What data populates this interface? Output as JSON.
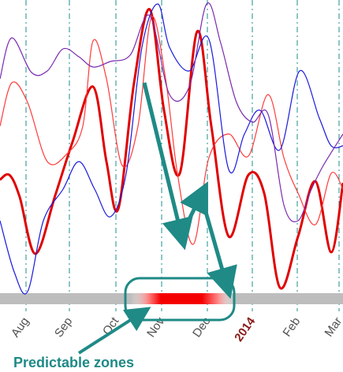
{
  "chart_data": {
    "type": "line",
    "title": "",
    "xlabel": "",
    "ylabel": "",
    "x_ticks": [
      "Aug",
      "Sep",
      "Oct",
      "Nov",
      "Dec",
      "2014",
      "Feb",
      "Mar"
    ],
    "year_tick": "2014",
    "grid": "vertical dashed lines at month boundaries",
    "series": [
      {
        "color": "#e00000",
        "style": "thick",
        "points": [
          [
            0,
            228
          ],
          [
            12,
            222
          ],
          [
            25,
            250
          ],
          [
            45,
            322
          ],
          [
            70,
            248
          ],
          [
            92,
            180
          ],
          [
            118,
            110
          ],
          [
            135,
            205
          ],
          [
            150,
            265
          ],
          [
            170,
            105
          ],
          [
            190,
            12
          ],
          [
            208,
            140
          ],
          [
            228,
            220
          ],
          [
            250,
            40
          ],
          [
            268,
            160
          ],
          [
            290,
            300
          ],
          [
            315,
            222
          ],
          [
            335,
            245
          ],
          [
            355,
            365
          ],
          [
            378,
            300
          ],
          [
            400,
            230
          ],
          [
            420,
            320
          ],
          [
            435,
            232
          ]
        ]
      },
      {
        "color": "#ff3a3a",
        "style": "thin",
        "points": [
          [
            0,
            160
          ],
          [
            15,
            105
          ],
          [
            35,
            130
          ],
          [
            60,
            205
          ],
          [
            85,
            195
          ],
          [
            105,
            160
          ],
          [
            118,
            52
          ],
          [
            135,
            100
          ],
          [
            155,
            210
          ],
          [
            175,
            160
          ],
          [
            192,
            22
          ],
          [
            210,
            100
          ],
          [
            225,
            220
          ],
          [
            245,
            310
          ],
          [
            265,
            200
          ],
          [
            290,
            170
          ],
          [
            315,
            198
          ],
          [
            340,
            120
          ],
          [
            360,
            200
          ],
          [
            378,
            245
          ],
          [
            400,
            285
          ],
          [
            420,
            220
          ],
          [
            435,
            240
          ]
        ]
      },
      {
        "color": "#1a1adc",
        "style": "thin",
        "points": [
          [
            0,
            280
          ],
          [
            18,
            345
          ],
          [
            35,
            370
          ],
          [
            55,
            280
          ],
          [
            80,
            240
          ],
          [
            100,
            205
          ],
          [
            120,
            240
          ],
          [
            140,
            275
          ],
          [
            160,
            220
          ],
          [
            180,
            60
          ],
          [
            200,
            5
          ],
          [
            215,
            60
          ],
          [
            240,
            90
          ],
          [
            265,
            50
          ],
          [
            290,
            215
          ],
          [
            310,
            170
          ],
          [
            330,
            140
          ],
          [
            355,
            190
          ],
          [
            380,
            90
          ],
          [
            405,
            150
          ],
          [
            420,
            185
          ],
          [
            435,
            185
          ]
        ]
      },
      {
        "color": "#7a2ab0",
        "style": "thin",
        "points": [
          [
            0,
            100
          ],
          [
            15,
            48
          ],
          [
            40,
            92
          ],
          [
            60,
            90
          ],
          [
            80,
            62
          ],
          [
            100,
            72
          ],
          [
            118,
            85
          ],
          [
            140,
            78
          ],
          [
            165,
            70
          ],
          [
            190,
            20
          ],
          [
            215,
            120
          ],
          [
            240,
            110
          ],
          [
            262,
            5
          ],
          [
            280,
            55
          ],
          [
            300,
            130
          ],
          [
            320,
            155
          ],
          [
            340,
            145
          ],
          [
            360,
            260
          ],
          [
            378,
            280
          ],
          [
            395,
            240
          ],
          [
            410,
            210
          ],
          [
            435,
            170
          ]
        ]
      }
    ],
    "annotation": {
      "label": "Predictable zones"
    }
  },
  "colors": {
    "band": "#bdbdbd",
    "highlight": "#f40000",
    "annotation": "#1f8a86",
    "grid": "#1e8c8c"
  }
}
